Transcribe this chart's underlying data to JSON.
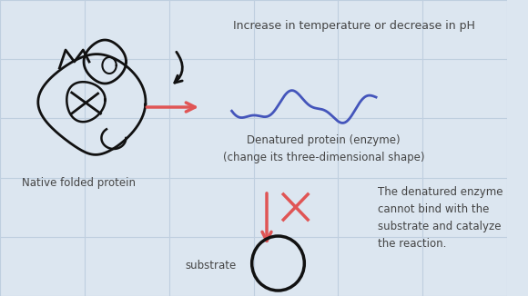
{
  "background_color": "#dce6f0",
  "grid_color": "#bfcfdf",
  "title_text": "Increase in temperature or decrease in pH",
  "title_fontsize": 9,
  "label_native": "Native folded protein",
  "label_denatured": "Denatured protein (enzyme)\n(change its three-dimensional shape)",
  "label_substrate": "substrate",
  "label_cannot": "The denatured enzyme\ncannot bind with the\nsubstrate and catalyze\nthe reaction.",
  "arrow_color": "#e05555",
  "wave_color": "#4455bb",
  "protein_color": "#111111",
  "substrate_color": "#111111",
  "font_color": "#444444",
  "font_size": 8.5
}
